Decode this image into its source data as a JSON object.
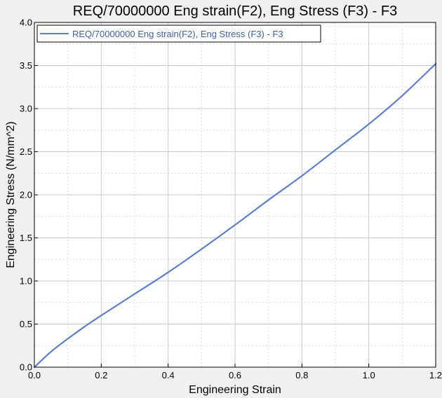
{
  "chart_data": {
    "type": "line",
    "title": "REQ/70000000 Eng strain(F2), Eng Stress (F3) - F3",
    "xlabel": "Engineering Strain",
    "ylabel": "Engineering Stress (N/mm^2)",
    "xlim": [
      0.0,
      1.2
    ],
    "ylim": [
      0.0,
      4.0
    ],
    "xticks": [
      0.0,
      0.2,
      0.4,
      0.6,
      0.8,
      1.0,
      1.2
    ],
    "xtick_labels": [
      "0.0",
      "0.2",
      "0.4",
      "0.6",
      "0.8",
      "1.0",
      "1.2"
    ],
    "yticks": [
      0.0,
      0.5,
      1.0,
      1.5,
      2.0,
      2.5,
      3.0,
      3.5,
      4.0
    ],
    "ytick_labels": [
      "0.0",
      "0.5",
      "1.0",
      "1.5",
      "2.0",
      "2.5",
      "3.0",
      "3.5",
      "4.0"
    ],
    "grid": true,
    "minor_grid": true,
    "legend_position": "top-left",
    "series": [
      {
        "name": "REQ/70000000 Eng strain(F2), Eng Stress (F3) - F3",
        "color": "#5b7fd6",
        "x": [
          0.0,
          0.05,
          0.1,
          0.15,
          0.2,
          0.3,
          0.4,
          0.5,
          0.6,
          0.7,
          0.8,
          0.9,
          1.0,
          1.1,
          1.2
        ],
        "y": [
          0.0,
          0.18,
          0.33,
          0.47,
          0.6,
          0.85,
          1.1,
          1.37,
          1.65,
          1.94,
          2.22,
          2.52,
          2.82,
          3.15,
          3.52
        ]
      }
    ]
  },
  "colors": {
    "background": "#f0f0f0",
    "plot_background": "#ffffff",
    "major_grid": "#c8c8c8",
    "minor_grid": "#dcdcdc",
    "axis": "#000000"
  }
}
